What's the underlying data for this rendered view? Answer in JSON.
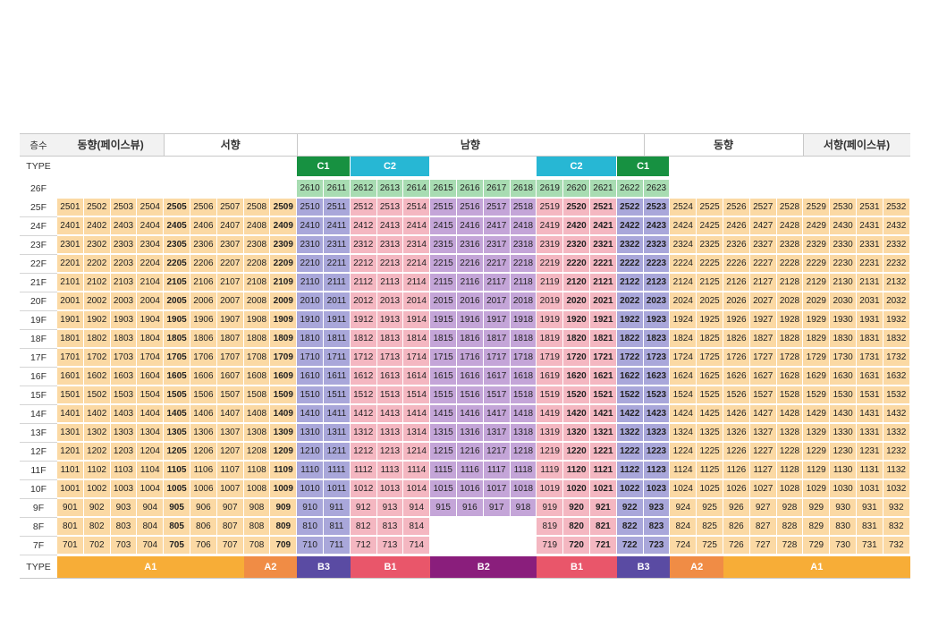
{
  "header": {
    "floor_label": "층수",
    "sections": [
      {
        "label": "동향(페이스뷰)",
        "span": [
          1,
          4
        ],
        "shade": true
      },
      {
        "label": "서향",
        "span": [
          5,
          9
        ],
        "shade": false
      },
      {
        "label": "남향",
        "span": [
          10,
          22
        ],
        "shade": false
      },
      {
        "label": "동향",
        "span": [
          23,
          28
        ],
        "shade": false
      },
      {
        "label": "서향(페이스뷰)",
        "span": [
          29,
          32
        ],
        "shade": true
      }
    ]
  },
  "type_label": "TYPE",
  "top_types": [
    {
      "label": "C1",
      "span": [
        10,
        11
      ],
      "color": "#179141"
    },
    {
      "label": "C2",
      "span": [
        12,
        14
      ],
      "color": "#27b7d4"
    },
    {
      "label": "C2",
      "span": [
        19,
        21
      ],
      "color": "#27b7d4"
    },
    {
      "label": "C1",
      "span": [
        22,
        23
      ],
      "color": "#179141"
    }
  ],
  "bottom_types": [
    {
      "label": "A1",
      "span": [
        1,
        7
      ],
      "color": "#f7ad37"
    },
    {
      "label": "A2",
      "span": [
        8,
        9
      ],
      "color": "#f08c45"
    },
    {
      "label": "B3",
      "span": [
        10,
        11
      ],
      "color": "#5a4ba3"
    },
    {
      "label": "B1",
      "span": [
        12,
        14
      ],
      "color": "#e9566a"
    },
    {
      "label": "B2",
      "span": [
        15,
        18
      ],
      "color": "#8a1e7c"
    },
    {
      "label": "B1",
      "span": [
        19,
        21
      ],
      "color": "#e9566a"
    },
    {
      "label": "B3",
      "span": [
        22,
        23
      ],
      "color": "#5a4ba3"
    },
    {
      "label": "A2",
      "span": [
        24,
        25
      ],
      "color": "#f08c45"
    },
    {
      "label": "A1",
      "span": [
        26,
        32
      ],
      "color": "#f7ad37"
    }
  ],
  "floor_26": {
    "label": "26F",
    "units": [
      "2610",
      "2611",
      "2612",
      "2613",
      "2614",
      "2615",
      "2616",
      "2617",
      "2618",
      "2619",
      "2620",
      "2621",
      "2622",
      "2623"
    ],
    "start_col": 10
  },
  "floors": [
    "25F",
    "24F",
    "23F",
    "22F",
    "21F",
    "20F",
    "19F",
    "18F",
    "17F",
    "16F",
    "15F",
    "14F",
    "13F",
    "12F",
    "11F",
    "10F",
    "9F",
    "8F",
    "7F"
  ],
  "missing_low_floors": {
    "floors": [
      "8F",
      "7F"
    ],
    "cols": [
      15,
      18
    ]
  },
  "unit_colors": {
    "A": "#fbd9a4",
    "C_26": "#a8dcb2",
    "C1_low": "#a9a7da",
    "C2_low": "#f4b7c1",
    "B2_zone": "#c4a5d8"
  },
  "bold_cols": [
    5,
    9,
    20,
    21,
    22,
    23
  ]
}
